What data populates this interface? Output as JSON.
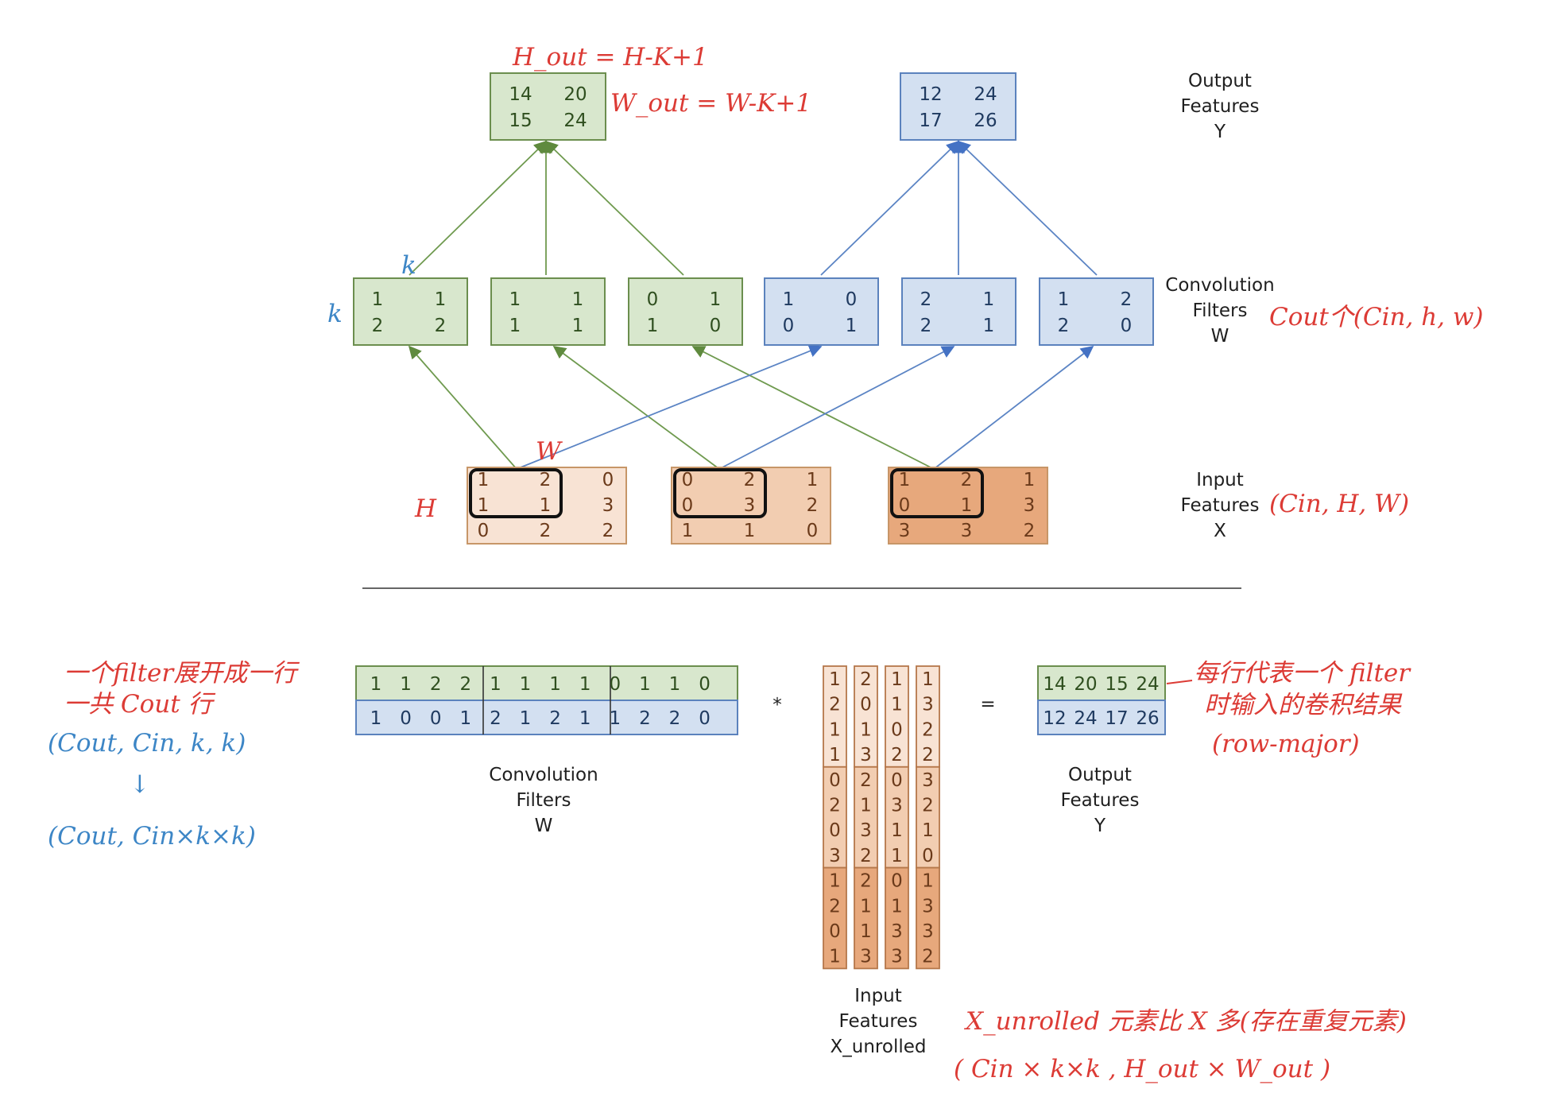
{
  "colors": {
    "green_fill": "#d8e7cd",
    "green_stroke": "#6b8e4e",
    "green_text": "#2f4f1f",
    "blue_fill": "#d3e0f1",
    "blue_stroke": "#5b82bd",
    "blue_text": "#1f3a60",
    "orange_text": "#6b3a1a",
    "orange_stroke": "#c79668",
    "orange_fills": [
      "#f8e3d4",
      "#f2cdb1",
      "#e7a87c"
    ],
    "annot_red": "#dc3b35",
    "annot_blue": "#3d86c6"
  },
  "top": {
    "output_green": [
      [
        "14",
        "20"
      ],
      [
        "15",
        "24"
      ]
    ],
    "output_blue": [
      [
        "12",
        "24"
      ],
      [
        "17",
        "26"
      ]
    ],
    "filters_green": [
      [
        [
          "1",
          "1"
        ],
        [
          "2",
          "2"
        ]
      ],
      [
        [
          "1",
          "1"
        ],
        [
          "1",
          "1"
        ]
      ],
      [
        [
          "0",
          "1"
        ],
        [
          "1",
          "0"
        ]
      ]
    ],
    "filters_blue": [
      [
        [
          "1",
          "0"
        ],
        [
          "0",
          "1"
        ]
      ],
      [
        [
          "2",
          "1"
        ],
        [
          "2",
          "1"
        ]
      ],
      [
        [
          "1",
          "2"
        ],
        [
          "2",
          "0"
        ]
      ]
    ],
    "inputs": [
      [
        [
          "1",
          "2",
          "0"
        ],
        [
          "1",
          "1",
          "3"
        ],
        [
          "0",
          "2",
          "2"
        ]
      ],
      [
        [
          "0",
          "2",
          "1"
        ],
        [
          "0",
          "3",
          "2"
        ],
        [
          "1",
          "1",
          "0"
        ]
      ],
      [
        [
          "1",
          "2",
          "1"
        ],
        [
          "0",
          "1",
          "3"
        ],
        [
          "3",
          "3",
          "2"
        ]
      ]
    ],
    "label_output": [
      "Output",
      "Features",
      "Y"
    ],
    "label_filters": [
      "Convolution",
      "Filters",
      "W"
    ],
    "label_input": [
      "Input",
      "Features",
      "X"
    ]
  },
  "bottom": {
    "w_green_row": [
      "1",
      "1",
      "2",
      "2",
      "1",
      "1",
      "1",
      "1",
      "0",
      "1",
      "1",
      "0"
    ],
    "w_blue_row": [
      "1",
      "0",
      "0",
      "1",
      "2",
      "1",
      "2",
      "1",
      "1",
      "2",
      "2",
      "0"
    ],
    "x_unrolled_columns": [
      [
        "1",
        "2",
        "1",
        "1",
        "0",
        "2",
        "0",
        "3",
        "1",
        "2",
        "0",
        "1"
      ],
      [
        "2",
        "0",
        "1",
        "3",
        "2",
        "1",
        "3",
        "2",
        "2",
        "1",
        "1",
        "3"
      ],
      [
        "1",
        "1",
        "0",
        "2",
        "0",
        "3",
        "1",
        "1",
        "0",
        "1",
        "3",
        "3"
      ],
      [
        "1",
        "3",
        "2",
        "2",
        "3",
        "2",
        "1",
        "0",
        "1",
        "3",
        "3",
        "2"
      ]
    ],
    "y_green_row": [
      "14",
      "20",
      "15",
      "24"
    ],
    "y_blue_row": [
      "12",
      "24",
      "17",
      "26"
    ],
    "multiply_sign": "*",
    "equals_sign": "=",
    "label_filters": [
      "Convolution",
      "Filters",
      "W"
    ],
    "label_input": [
      "Input",
      "Features",
      "X_unrolled"
    ],
    "label_output": [
      "Output",
      "Features",
      "Y"
    ]
  },
  "annotations": {
    "h_out": "H_out = H-K+1",
    "w_out": "W_out = W-K+1",
    "k_top": "k",
    "k_left": "k",
    "filters_shape": "Cout个(Cin, h, w)",
    "input_shape": "(Cin, H, W)",
    "h_label": "H",
    "w_label": "W",
    "left_line1": "一个filter展开成一行",
    "left_line2": "一共 Cout 行",
    "left_shape1": "(Cout, Cin, k, k)",
    "left_arrow": "↓",
    "left_shape2": "(Cout, Cin×k×k)",
    "right_line1": "每行代表一个 filter",
    "right_line2": "时输入的卷积结果",
    "right_line3": "(row-major)",
    "bottom_line1": "X_unrolled 元素比 X 多(存在重复元素)",
    "bottom_line2": "( Cin × k×k , H_out × W_out )"
  }
}
